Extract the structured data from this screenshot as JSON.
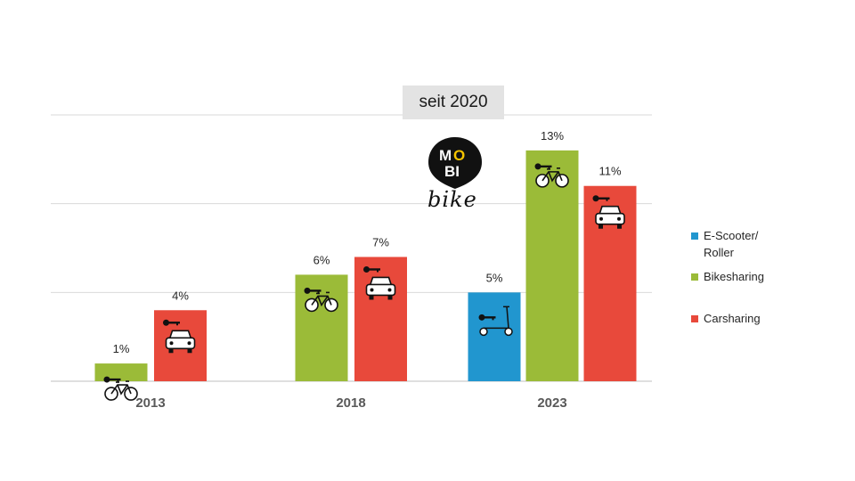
{
  "banner": {
    "text": "seit 2020"
  },
  "logo": {
    "line1_a": "M",
    "line1_b": "O",
    "line2": "BI",
    "word": "bike"
  },
  "colors": {
    "scooter": "#2196cf",
    "bike": "#9bbb38",
    "car": "#e8493b",
    "grid": "#d9d9d9",
    "axis": "#bfbfbf"
  },
  "chart_data": {
    "type": "bar",
    "categories": [
      "2013",
      "2018",
      "2023"
    ],
    "series": [
      {
        "name": "E-Scooter/ Roller",
        "values": [
          null,
          null,
          5
        ],
        "labels": [
          null,
          null,
          "5%"
        ],
        "icon": "scooter-icon"
      },
      {
        "name": "Bikesharing",
        "values": [
          1,
          6,
          13
        ],
        "labels": [
          "1%",
          "6%",
          "13%"
        ],
        "icon": "bicycle-icon"
      },
      {
        "name": "Carsharing",
        "values": [
          4,
          7,
          11
        ],
        "labels": [
          "4%",
          "7%",
          "11%"
        ],
        "icon": "car-icon"
      }
    ],
    "ylim": [
      0,
      15
    ],
    "gridlines": [
      0,
      5,
      10,
      15
    ],
    "legend_position": "right"
  },
  "legend": {
    "items": [
      {
        "line1": "E-Scooter/",
        "line2": "Roller"
      },
      {
        "line1": "Bikesharing",
        "line2": ""
      },
      {
        "line1": "Carsharing",
        "line2": ""
      }
    ]
  }
}
